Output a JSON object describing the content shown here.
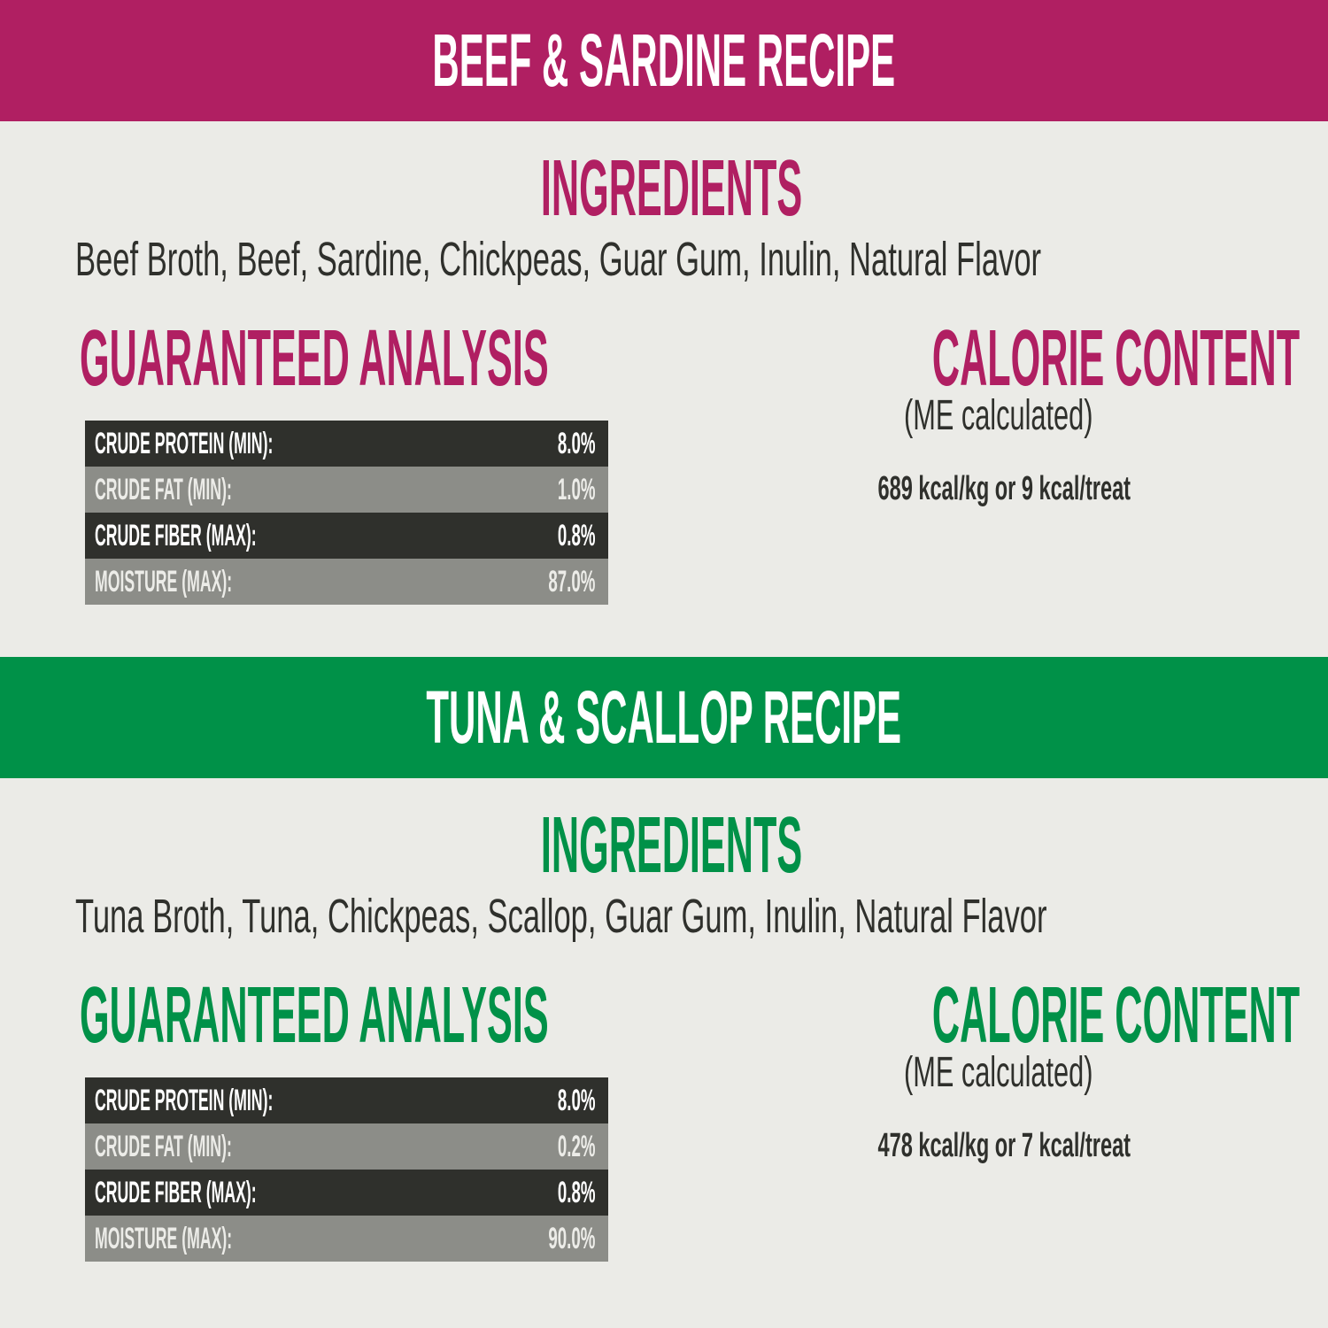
{
  "sections": [
    {
      "title": "BEEF & SARDINE RECIPE",
      "color": "#b01f62",
      "ingredients_heading": "INGREDIENTS",
      "ingredients": "Beef Broth, Beef, Sardine, Chickpeas, Guar Gum, Inulin, Natural Flavor",
      "analysis_heading": "GUARANTEED ANALYSIS",
      "analysis": [
        [
          "CRUDE PROTEIN (MIN):",
          "8.0%"
        ],
        [
          "CRUDE FAT (MIN):",
          "1.0%"
        ],
        [
          "CRUDE FIBER (MAX):",
          "0.8%"
        ],
        [
          "MOISTURE (MAX):",
          "87.0%"
        ]
      ],
      "calorie_heading": "CALORIE CONTENT",
      "calorie_note": "(ME calculated)",
      "calorie_text": "689 kcal/kg or 9 kcal/treat"
    },
    {
      "title": "TUNA & SCALLOP RECIPE",
      "color": "#009148",
      "ingredients_heading": "INGREDIENTS",
      "ingredients": "Tuna Broth, Tuna, Chickpeas, Scallop, Guar Gum, Inulin, Natural Flavor",
      "analysis_heading": "GUARANTEED ANALYSIS",
      "analysis": [
        [
          "CRUDE PROTEIN (MIN):",
          "8.0%"
        ],
        [
          "CRUDE FAT (MIN):",
          "0.2%"
        ],
        [
          "CRUDE FIBER (MAX):",
          "0.8%"
        ],
        [
          "MOISTURE (MAX):",
          "90.0%"
        ]
      ],
      "calorie_heading": "CALORIE CONTENT",
      "calorie_note": "(ME calculated)",
      "calorie_text": "478 kcal/kg or 7 kcal/treat"
    }
  ]
}
